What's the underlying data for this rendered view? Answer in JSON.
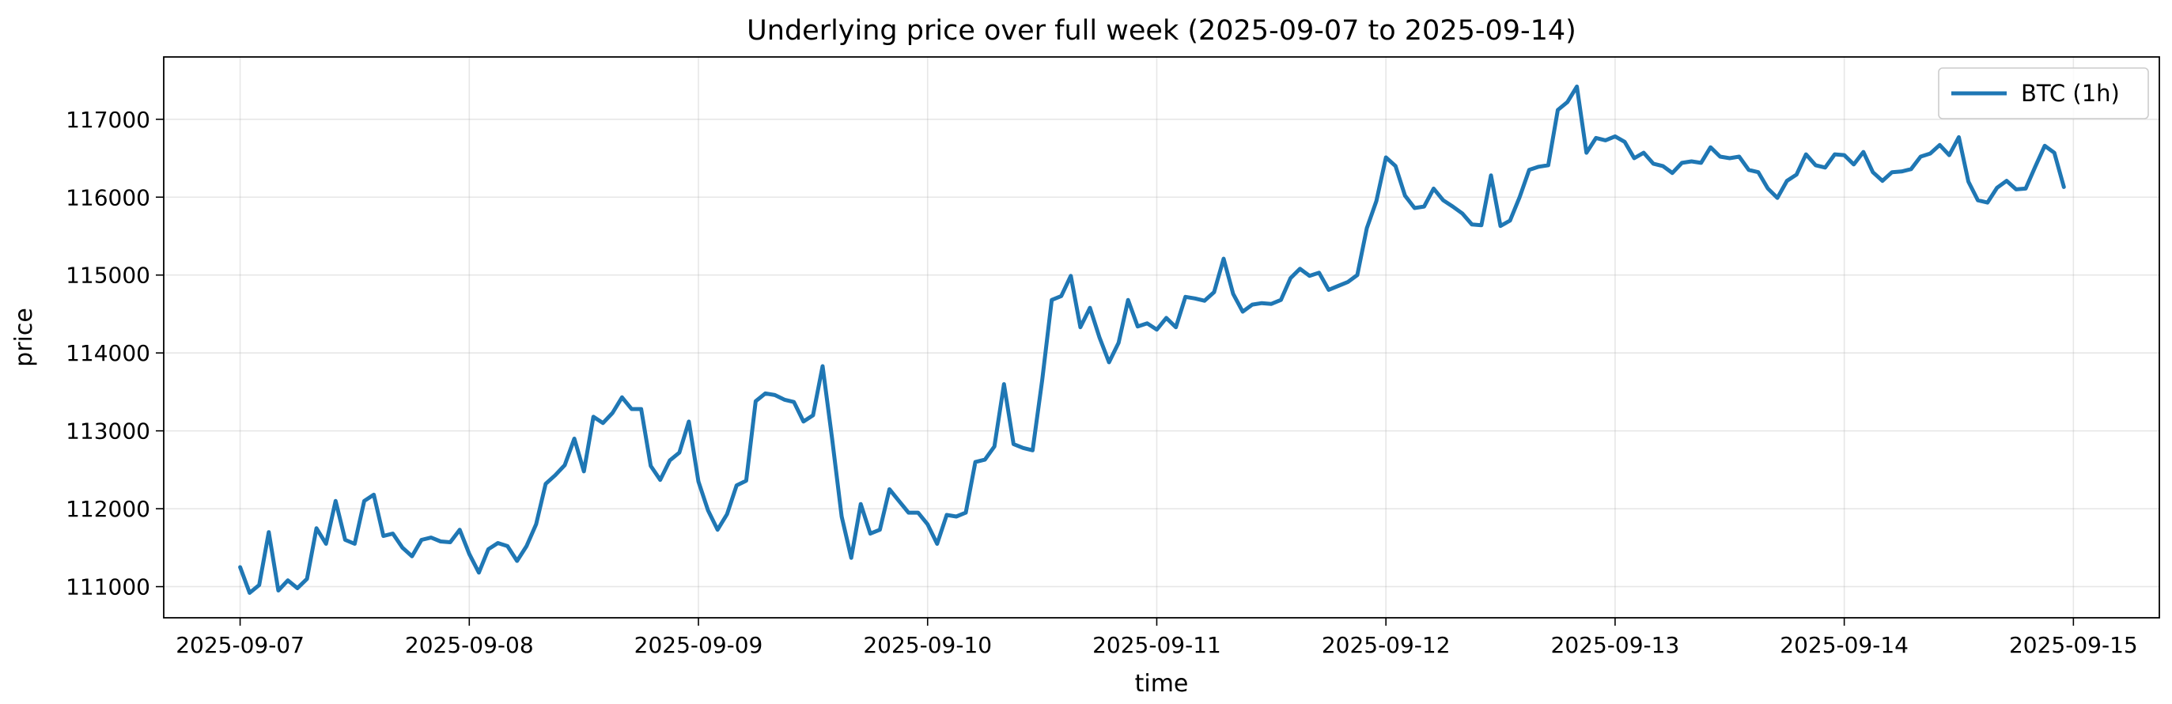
{
  "chart_data": {
    "type": "line",
    "title": "Underlying price over full week (2025-09-07 to 2025-09-14)",
    "xlabel": "time",
    "ylabel": "price",
    "xlim": [
      "2025-09-06T16:00",
      "2025-09-15T09:00"
    ],
    "ylim": [
      110600,
      117800
    ],
    "x_ticks": [
      "2025-09-07",
      "2025-09-08",
      "2025-09-09",
      "2025-09-10",
      "2025-09-11",
      "2025-09-12",
      "2025-09-13",
      "2025-09-14",
      "2025-09-15"
    ],
    "y_ticks": [
      111000,
      112000,
      113000,
      114000,
      115000,
      116000,
      117000
    ],
    "grid": true,
    "legend_position": "top-right",
    "colors": {
      "series": "#1f77b4",
      "axes": "#000000",
      "grid": "#b0b0b0"
    },
    "series": [
      {
        "name": "BTC (1h)",
        "x_start": "2025-09-07T00:00",
        "x_step_hours": 1,
        "values": [
          111250,
          110920,
          111020,
          111700,
          110950,
          111080,
          110980,
          111100,
          111750,
          111550,
          112100,
          111600,
          111550,
          112100,
          112180,
          111650,
          111680,
          111500,
          111390,
          111600,
          111630,
          111580,
          111570,
          111730,
          111420,
          111180,
          111480,
          111560,
          111520,
          111330,
          111520,
          111800,
          112320,
          112430,
          112560,
          112900,
          112480,
          113180,
          113100,
          113230,
          113430,
          113280,
          113280,
          112550,
          112370,
          112620,
          112720,
          113120,
          112350,
          111980,
          111730,
          111930,
          112300,
          112360,
          113380,
          113480,
          113460,
          113400,
          113370,
          113120,
          113200,
          113830,
          112900,
          111900,
          111370,
          112060,
          111680,
          111730,
          112250,
          112100,
          111950,
          111950,
          111800,
          111550,
          111920,
          111900,
          111950,
          112600,
          112630,
          112800,
          113600,
          112830,
          112780,
          112750,
          113650,
          114680,
          114730,
          114990,
          114330,
          114580,
          114200,
          113880,
          114130,
          114680,
          114340,
          114380,
          114300,
          114450,
          114330,
          114720,
          114700,
          114670,
          114780,
          115210,
          114760,
          114530,
          114620,
          114640,
          114630,
          114680,
          114960,
          115080,
          114990,
          115030,
          114810,
          114860,
          114910,
          115000,
          115600,
          115950,
          116510,
          116400,
          116020,
          115860,
          115880,
          116110,
          115960,
          115880,
          115790,
          115650,
          115640,
          116280,
          115630,
          115700,
          116000,
          116350,
          116390,
          116410,
          117120,
          117220,
          117420,
          116570,
          116760,
          116730,
          116780,
          116710,
          116500,
          116570,
          116430,
          116400,
          116310,
          116440,
          116460,
          116440,
          116640,
          116520,
          116500,
          116520,
          116350,
          116320,
          116110,
          115990,
          116210,
          116290,
          116550,
          116410,
          116380,
          116550,
          116540,
          116420,
          116580,
          116320,
          116210,
          116320,
          116330,
          116360,
          116520,
          116560,
          116670,
          116540,
          116770,
          116200,
          115960,
          115930,
          116120,
          116210,
          116100,
          116110,
          116390,
          116660,
          116570,
          116130
        ]
      }
    ]
  }
}
